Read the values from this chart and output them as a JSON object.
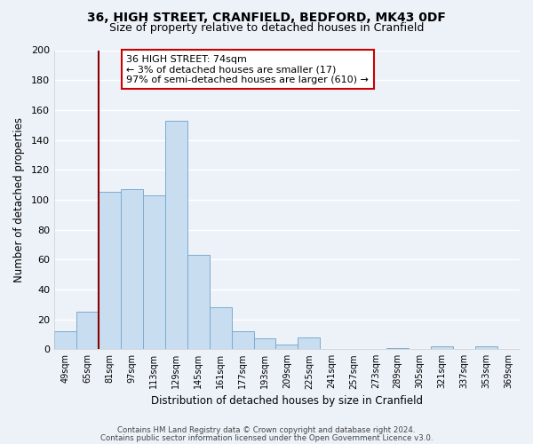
{
  "title": "36, HIGH STREET, CRANFIELD, BEDFORD, MK43 0DF",
  "subtitle": "Size of property relative to detached houses in Cranfield",
  "xlabel": "Distribution of detached houses by size in Cranfield",
  "ylabel": "Number of detached properties",
  "bar_color": "#c8ddf0",
  "bar_edge_color": "#7aadce",
  "background_color": "#edf2f9",
  "grid_color": "#ffffff",
  "categories": [
    "49sqm",
    "65sqm",
    "81sqm",
    "97sqm",
    "113sqm",
    "129sqm",
    "145sqm",
    "161sqm",
    "177sqm",
    "193sqm",
    "209sqm",
    "225sqm",
    "241sqm",
    "257sqm",
    "273sqm",
    "289sqm",
    "305sqm",
    "321sqm",
    "337sqm",
    "353sqm",
    "369sqm"
  ],
  "values": [
    12,
    25,
    105,
    107,
    103,
    153,
    63,
    28,
    12,
    7,
    3,
    8,
    0,
    0,
    0,
    1,
    0,
    2,
    0,
    2,
    0
  ],
  "ylim": [
    0,
    200
  ],
  "yticks": [
    0,
    20,
    40,
    60,
    80,
    100,
    120,
    140,
    160,
    180,
    200
  ],
  "vline_x": 1.5,
  "vline_color": "#8b0000",
  "annotation_text": "36 HIGH STREET: 74sqm\n← 3% of detached houses are smaller (17)\n97% of semi-detached houses are larger (610) →",
  "annotation_box_color": "#ffffff",
  "annotation_box_edge": "#cc0000",
  "footnote1": "Contains HM Land Registry data © Crown copyright and database right 2024.",
  "footnote2": "Contains public sector information licensed under the Open Government Licence v3.0."
}
